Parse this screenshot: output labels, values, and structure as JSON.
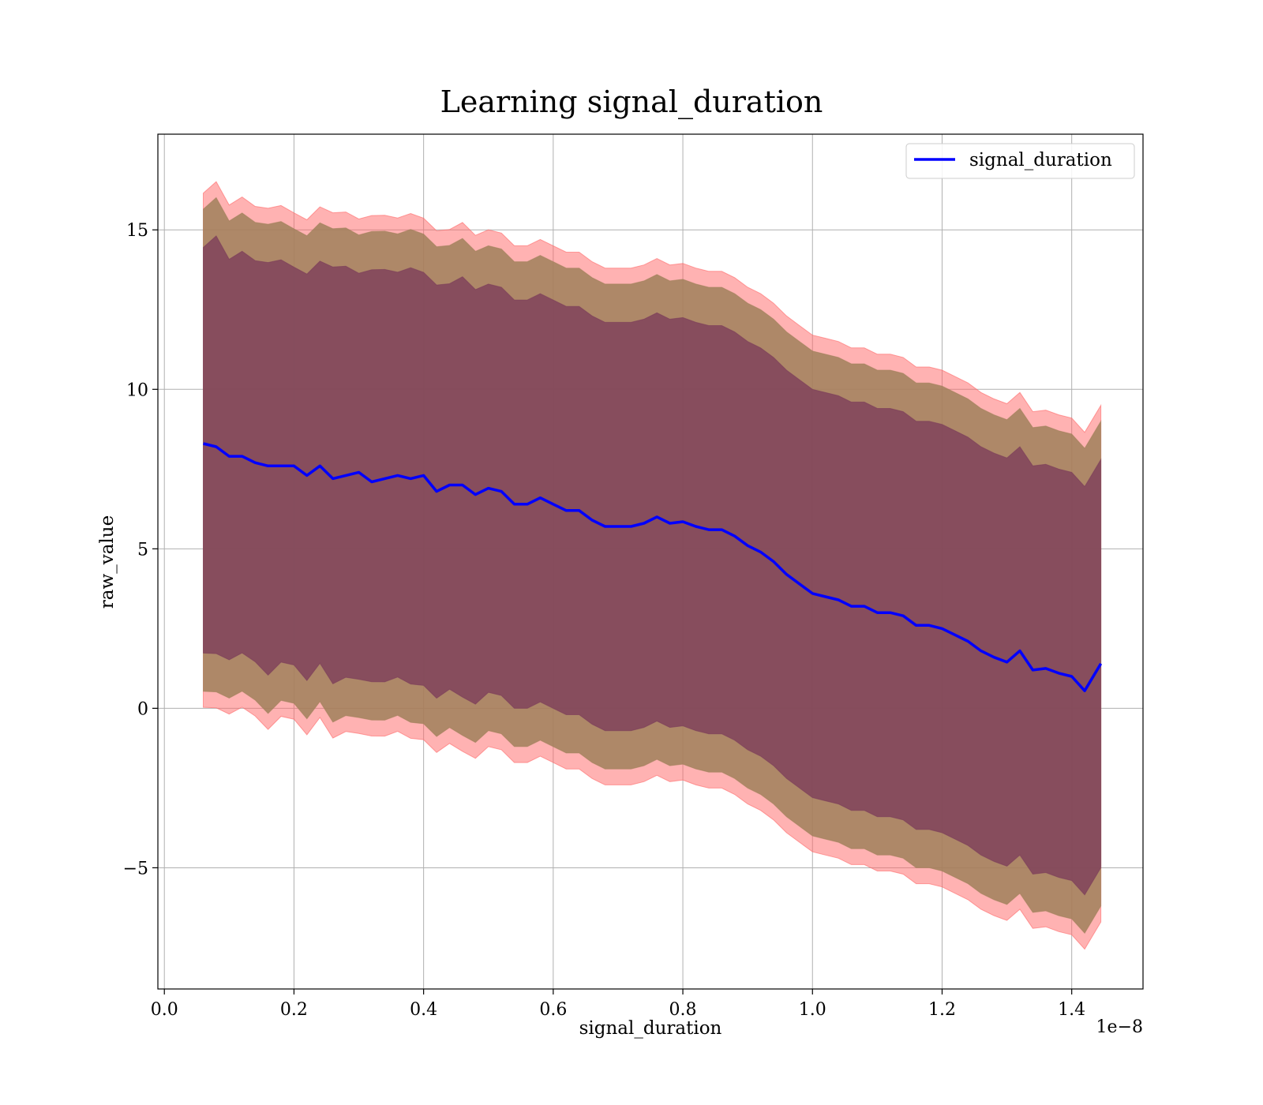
{
  "chart_data": {
    "type": "line",
    "title": "Learning signal_duration",
    "xlabel": "signal_duration",
    "ylabel": "raw_value",
    "x_offset_label": "1e−8",
    "xlim": [
      -0.01,
      1.51
    ],
    "ylim": [
      -8.8,
      18.0
    ],
    "x_ticks": [
      0.0,
      0.2,
      0.4,
      0.6,
      0.8,
      1.0,
      1.2,
      1.4
    ],
    "x_tick_labels": [
      "0.0",
      "0.2",
      "0.4",
      "0.6",
      "0.8",
      "1.0",
      "1.2",
      "1.4"
    ],
    "y_ticks": [
      -5,
      0,
      5,
      10,
      15
    ],
    "y_tick_labels": [
      "−5",
      "0",
      "5",
      "10",
      "15"
    ],
    "grid": true,
    "legend": {
      "position": "top-right",
      "entries": [
        "signal_duration"
      ]
    },
    "colors": {
      "mean_line": "#0000ff",
      "band_outer": "#ff6666",
      "band_middle": "#a0805a",
      "band_inner": "#7a3a5a"
    },
    "band_halfwidths": {
      "inner": 6.4,
      "middle": 7.6,
      "outer": 8.1
    },
    "series": [
      {
        "name": "signal_duration",
        "x": [
          0.06,
          0.08,
          0.1,
          0.12,
          0.14,
          0.16,
          0.18,
          0.2,
          0.22,
          0.24,
          0.26,
          0.28,
          0.3,
          0.32,
          0.34,
          0.36,
          0.38,
          0.4,
          0.42,
          0.44,
          0.46,
          0.48,
          0.5,
          0.52,
          0.54,
          0.56,
          0.58,
          0.6,
          0.62,
          0.64,
          0.66,
          0.68,
          0.7,
          0.72,
          0.74,
          0.76,
          0.78,
          0.8,
          0.82,
          0.84,
          0.86,
          0.88,
          0.9,
          0.92,
          0.94,
          0.96,
          0.98,
          1.0,
          1.02,
          1.04,
          1.06,
          1.08,
          1.1,
          1.12,
          1.14,
          1.16,
          1.18,
          1.2,
          1.22,
          1.24,
          1.26,
          1.28,
          1.3,
          1.32,
          1.34,
          1.36,
          1.38,
          1.4,
          1.42,
          1.445
        ],
        "y": [
          8.3,
          8.2,
          7.9,
          7.9,
          7.7,
          7.6,
          7.6,
          7.6,
          7.3,
          7.6,
          7.2,
          7.3,
          7.4,
          7.1,
          7.2,
          7.3,
          7.2,
          7.3,
          6.8,
          7.0,
          7.0,
          6.7,
          6.9,
          6.8,
          6.4,
          6.4,
          6.6,
          6.4,
          6.2,
          6.2,
          5.9,
          5.7,
          5.7,
          5.7,
          5.8,
          6.0,
          5.8,
          5.85,
          5.7,
          5.6,
          5.6,
          5.4,
          5.1,
          4.9,
          4.6,
          4.2,
          3.9,
          3.6,
          3.5,
          3.4,
          3.2,
          3.2,
          3.0,
          3.0,
          2.9,
          2.6,
          2.6,
          2.5,
          2.3,
          2.1,
          1.8,
          1.6,
          1.45,
          1.8,
          1.2,
          1.25,
          1.1,
          1.0,
          0.55,
          1.4
        ]
      }
    ]
  }
}
